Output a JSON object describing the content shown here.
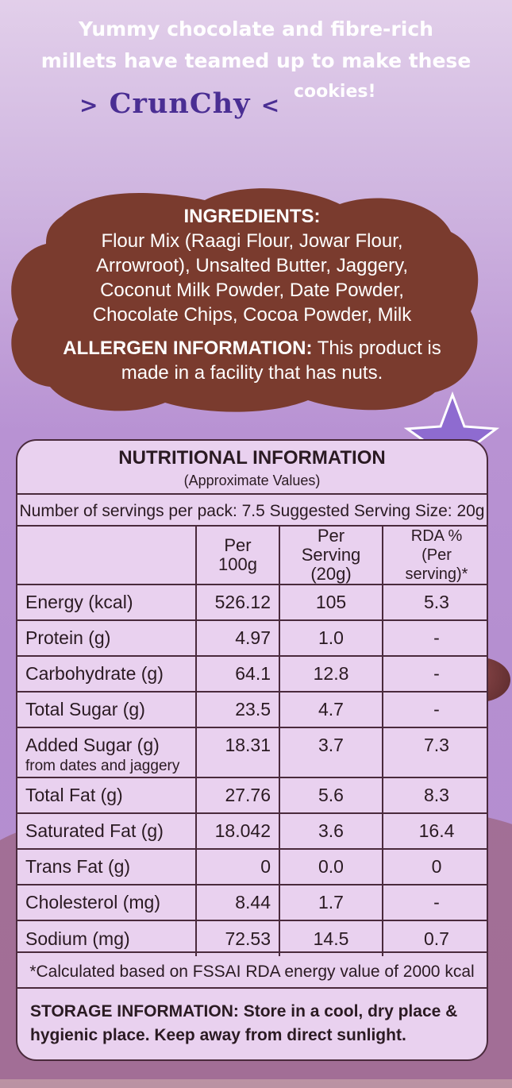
{
  "headline": {
    "line1": "Yummy chocolate and fibre-rich",
    "line2": "millets have teamed up to make these",
    "brand": "CrunChy",
    "line3": "cookies!"
  },
  "ingredients": {
    "title": "INGREDIENTS:",
    "lines": [
      "Flour Mix (Raagi Flour, Jowar Flour,",
      "Arrowroot), Unsalted Butter, Jaggery,",
      "Coconut Milk Powder, Date Powder,",
      "Chocolate Chips, Cocoa Powder, Milk"
    ]
  },
  "allergen": {
    "label": "ALLERGEN INFORMATION:",
    "text_part1": " This product is",
    "text_part2": "made in a facility that has nuts."
  },
  "nutrition": {
    "title": "NUTRITIONAL INFORMATION",
    "subtitle": "(Approximate Values)",
    "servings_line": "Number of servings per pack: 7.5   Suggested Serving Size: 20g",
    "headers": {
      "per100": "Per 100g",
      "per_serving_1": "Per Serving",
      "per_serving_2": "(20g)",
      "rda_1": "RDA %",
      "rda_2": "(Per serving)*"
    },
    "rows": [
      {
        "name": "Energy (kcal)",
        "per100": "526.12",
        "serving": "105",
        "rda": "5.3"
      },
      {
        "name": "Protein (g)",
        "per100": "4.97",
        "serving": "1.0",
        "rda": "-"
      },
      {
        "name": "Carbohydrate (g)",
        "per100": "64.1",
        "serving": "12.8",
        "rda": "-"
      },
      {
        "name": "Total Sugar (g)",
        "per100": "23.5",
        "serving": "4.7",
        "rda": "-"
      },
      {
        "name": "Added Sugar (g)",
        "note": "from dates and jaggery",
        "per100": "18.31",
        "serving": "3.7",
        "rda": "7.3"
      },
      {
        "name": "Total Fat (g)",
        "per100": "27.76",
        "serving": "5.6",
        "rda": "8.3"
      },
      {
        "name": "Saturated Fat (g)",
        "per100": "18.042",
        "serving": "3.6",
        "rda": "16.4"
      },
      {
        "name": "Trans Fat (g)",
        "per100": "0",
        "serving": "0.0",
        "rda": "0"
      },
      {
        "name": "Cholesterol (mg)",
        "per100": "8.44",
        "serving": "1.7",
        "rda": "-"
      },
      {
        "name": "Sodium (mg)",
        "per100": "72.53",
        "serving": "14.5",
        "rda": "0.7"
      }
    ],
    "footnote": "*Calculated based on FSSAI RDA energy value of 2000 kcal"
  },
  "storage": {
    "label": "STORAGE INFORMATION:",
    "text_part1": " Store in a cool, dry place &",
    "text_part2": "hygienic place. Keep away from direct sunlight."
  },
  "colors": {
    "cloud": "#7a3b2e",
    "brand": "#4a2e93",
    "panel": "#e9d1ef",
    "border": "#4a2a3c"
  }
}
